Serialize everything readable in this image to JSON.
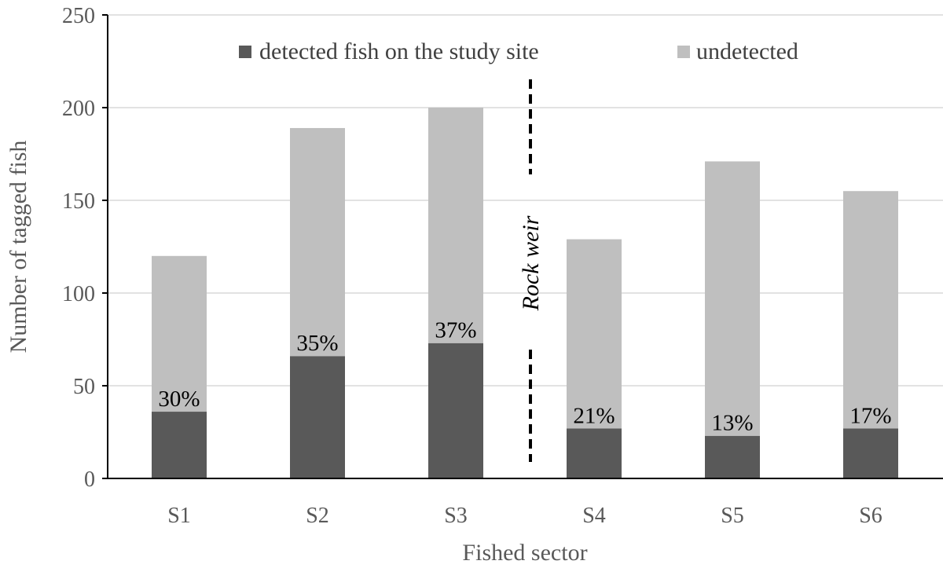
{
  "chart_data": {
    "type": "bar",
    "stacked": true,
    "categories": [
      "S1",
      "S2",
      "S3",
      "S4",
      "S5",
      "S6"
    ],
    "series": [
      {
        "name": "detected fish on the study site",
        "values": [
          36,
          66,
          73,
          27,
          23,
          27
        ],
        "color": "#595959"
      },
      {
        "name": "undetected",
        "values": [
          84,
          123,
          127,
          102,
          148,
          128
        ],
        "color": "#bfbfbf"
      }
    ],
    "data_labels": [
      "30%",
      "35%",
      "37%",
      "21%",
      "13%",
      "17%"
    ],
    "xlabel": "Fished sector",
    "ylabel": "Number of tagged fish",
    "ylim": [
      0,
      250
    ],
    "yticks": [
      0,
      50,
      100,
      150,
      200,
      250
    ],
    "grid": true,
    "legend_position": "top",
    "annotation": {
      "text": "Rock weir",
      "between": [
        "S3",
        "S4"
      ]
    }
  }
}
